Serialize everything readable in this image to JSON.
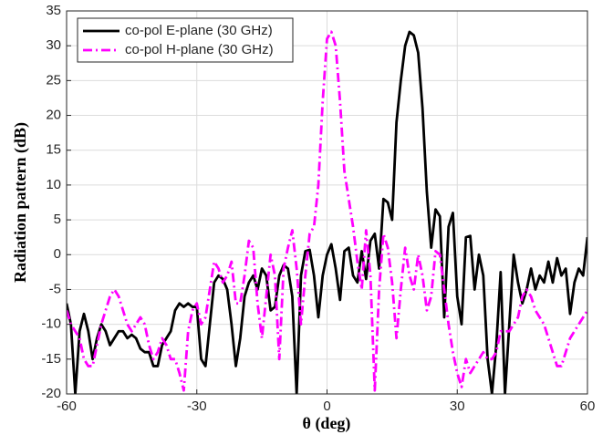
{
  "chart_data": {
    "type": "line",
    "xlabel": "θ (deg)",
    "ylabel": "Radiation pattern (dB)",
    "x": [
      -60,
      -59,
      -58,
      -57,
      -56,
      -55,
      -54,
      -53,
      -52,
      -51,
      -50,
      -49,
      -48,
      -47,
      -46,
      -45,
      -44,
      -43,
      -42,
      -41,
      -40,
      -39,
      -38,
      -37,
      -36,
      -35,
      -34,
      -33,
      -32,
      -31,
      -30,
      -29,
      -28,
      -27,
      -26,
      -25,
      -24,
      -23,
      -22,
      -21,
      -20,
      -19,
      -18,
      -17,
      -16,
      -15,
      -14,
      -13,
      -12,
      -11,
      -10,
      -9,
      -8,
      -7,
      -6,
      -5,
      -4,
      -3,
      -2,
      -1,
      0,
      1,
      2,
      3,
      4,
      5,
      6,
      7,
      8,
      9,
      10,
      11,
      12,
      13,
      14,
      15,
      16,
      17,
      18,
      19,
      20,
      21,
      22,
      23,
      24,
      25,
      26,
      27,
      28,
      29,
      30,
      31,
      32,
      33,
      34,
      35,
      36,
      37,
      38,
      39,
      40,
      41,
      42,
      43,
      44,
      45,
      46,
      47,
      48,
      49,
      50,
      51,
      52,
      53,
      54,
      55,
      56,
      57,
      58,
      59,
      60
    ],
    "series": [
      {
        "name": "co-pol E-plane (30 GHz)",
        "color": "#000000",
        "dash": "solid",
        "values": [
          -7,
          -10,
          -20,
          -11,
          -8.5,
          -11,
          -15,
          -12,
          -10,
          -11,
          -13,
          -12,
          -11,
          -11,
          -12,
          -11.5,
          -12,
          -13.5,
          -14,
          -14,
          -16,
          -16,
          -13,
          -12,
          -11,
          -8,
          -7,
          -7.5,
          -7,
          -7.5,
          -7.5,
          -15,
          -16,
          -10,
          -4,
          -3,
          -3.5,
          -5,
          -10,
          -16,
          -12,
          -6,
          -4,
          -3,
          -5,
          -2,
          -3,
          -8,
          -7.5,
          -3,
          -1.5,
          -2,
          -6,
          -20,
          -3,
          0.5,
          0.7,
          -3,
          -9,
          -3,
          0,
          1.5,
          -2,
          -6.5,
          0.5,
          1,
          -3,
          -4,
          0.5,
          -3.5,
          2,
          3,
          -2,
          8,
          7.5,
          5,
          19,
          25,
          30,
          32,
          31.5,
          29,
          21,
          9,
          1,
          6.5,
          5.5,
          -9,
          4,
          6,
          -6,
          -10,
          2.5,
          2.7,
          -5,
          0,
          -3,
          -15,
          -20,
          -13,
          -2.5,
          -20,
          -10,
          0,
          -4,
          -7,
          -5,
          -2,
          -5,
          -3,
          -4,
          -1,
          -4,
          -0.5,
          -3,
          -2,
          -8.5,
          -4,
          -2,
          -3,
          2.5
        ]
      },
      {
        "name": "co-pol H-plane (30 GHz)",
        "color": "#ff00ff",
        "dash": "dashdot",
        "values": [
          -8,
          -10,
          -11,
          -12,
          -15,
          -16,
          -16,
          -13,
          -10,
          -8,
          -6,
          -5,
          -6,
          -8,
          -10,
          -11,
          -10,
          -9,
          -10,
          -13,
          -15,
          -14,
          -12,
          -13,
          -15,
          -15,
          -17,
          -19.5,
          -11,
          -8,
          -7,
          -10,
          -9,
          -5,
          -1,
          -2,
          -4,
          -3,
          -1,
          -7,
          -7,
          -3,
          2,
          1,
          -7,
          -12,
          -6,
          0,
          -3,
          -15,
          -2,
          1,
          3.5,
          -2,
          -10,
          -3,
          3,
          4,
          10,
          22,
          31,
          32,
          30,
          22,
          12,
          8,
          4,
          -1,
          -5,
          3.5,
          -3,
          -19.5,
          -5,
          3,
          1,
          -4,
          -12,
          -5,
          1,
          -3,
          -5,
          0,
          -3,
          -8,
          -6,
          0.5,
          0,
          -5,
          -10,
          -14,
          -17,
          -19,
          -15,
          -17,
          -16,
          -15,
          -14,
          -15,
          -15,
          -14,
          -11,
          -11,
          -11,
          -10,
          -9,
          -6,
          -5,
          -6,
          -8,
          -9,
          -10,
          -12,
          -14,
          -16,
          -16,
          -14,
          -12,
          -11,
          -10,
          -9,
          -8
        ]
      }
    ],
    "xlim": [
      -60,
      60
    ],
    "ylim": [
      -20,
      35
    ],
    "xticks": [
      -60,
      -30,
      0,
      30,
      60
    ],
    "yticks": [
      -20,
      -15,
      -10,
      -5,
      0,
      5,
      10,
      15,
      20,
      25,
      30,
      35
    ],
    "grid": true,
    "legend": "upper left"
  }
}
